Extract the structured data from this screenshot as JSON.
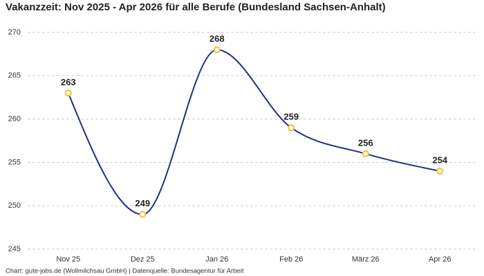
{
  "chart_data": {
    "type": "line",
    "title": "Vakanzzeit: Nov 2025 - Apr 2026 für alle Berufe (Bundesland Sachsen-Anhalt)",
    "source": "Chart: gute-jobs.de (Wollmilchsau GmbH) | Datenquelle: Bundesagentur für Arbeit",
    "categories": [
      "Nov 25",
      "Dez 25",
      "Jan 26",
      "Feb 26",
      "März 26",
      "Apr 26"
    ],
    "values": [
      263,
      249,
      268,
      259,
      256,
      254
    ],
    "color": "#1f2d8a",
    "marker_color": "#f2c12e",
    "ylim": [
      245,
      270
    ],
    "yticks": [
      245,
      250,
      255,
      260,
      265,
      270
    ],
    "grid": true
  }
}
